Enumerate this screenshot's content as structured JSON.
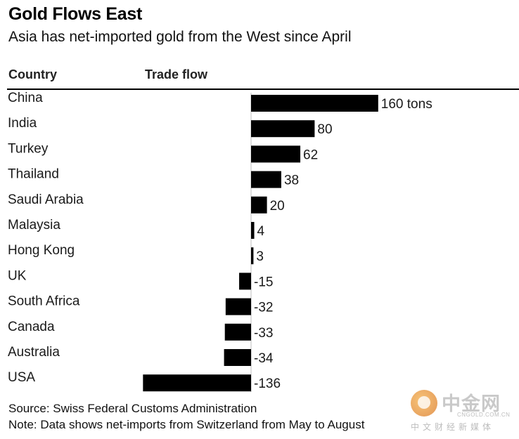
{
  "chart_data": {
    "type": "bar",
    "orientation": "horizontal",
    "title": "Gold Flows East",
    "subtitle": "Asia has net-imported gold from the West since April",
    "column_headers": [
      "Country",
      "Trade flow"
    ],
    "unit": "tons",
    "categories": [
      "China",
      "India",
      "Turkey",
      "Thailand",
      "Saudi Arabia",
      "Malaysia",
      "Hong Kong",
      "UK",
      "South Africa",
      "Canada",
      "Australia",
      "USA"
    ],
    "values": [
      160,
      80,
      62,
      38,
      20,
      4,
      3,
      -15,
      -32,
      -33,
      -34,
      -136
    ],
    "value_labels": [
      "160 tons",
      "80",
      "62",
      "38",
      "20",
      "4",
      "3",
      "-15",
      "-32",
      "-33",
      "-34",
      "-136"
    ],
    "xlim": [
      -136,
      160
    ],
    "bar_color": "#000000",
    "source": "Source: Swiss Federal Customs Administration",
    "note": "Note: Data shows net-imports from Switzerland from May to August"
  },
  "watermark": {
    "name": "中金网",
    "url": "CNGOLD.COM.CN",
    "tagline": "中文财经新媒体"
  }
}
